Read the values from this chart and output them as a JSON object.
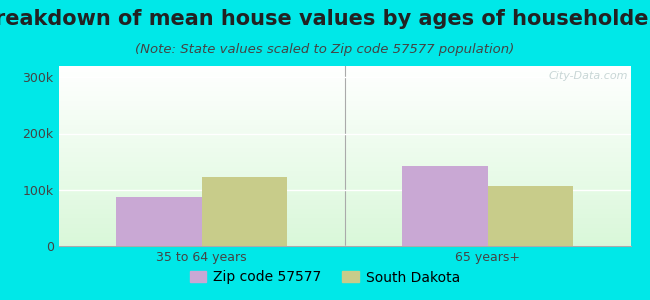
{
  "title": "Breakdown of mean house values by ages of householders",
  "subtitle": "(Note: State values scaled to Zip code 57577 population)",
  "categories": [
    "35 to 64 years",
    "65 years+"
  ],
  "zip_values": [
    87000,
    143000
  ],
  "state_values": [
    122000,
    106000
  ],
  "zip_color": "#c9a8d4",
  "state_color": "#c8cc8a",
  "background_color": "#00e8e8",
  "ylim": [
    0,
    320000
  ],
  "ytick_labels": [
    "0",
    "100k",
    "200k",
    "300k"
  ],
  "ytick_vals": [
    0,
    100000,
    200000,
    300000
  ],
  "legend_zip_label": "Zip code 57577",
  "legend_state_label": "South Dakota",
  "bar_width": 0.3,
  "title_fontsize": 15,
  "subtitle_fontsize": 9.5,
  "tick_fontsize": 9,
  "legend_fontsize": 10,
  "title_color": "#222222",
  "subtitle_color": "#444444",
  "tick_color": "#444444"
}
